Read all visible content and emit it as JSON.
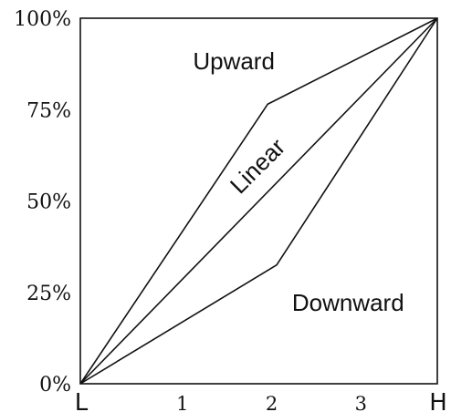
{
  "chart_data": {
    "type": "line",
    "title": "",
    "xlabel": "",
    "ylabel": "",
    "x_ticks": [
      "L",
      "1",
      "2",
      "3",
      "H"
    ],
    "y_ticks": [
      "0%",
      "25%",
      "50%",
      "75%",
      "100%"
    ],
    "xlim": [
      0,
      4
    ],
    "ylim": [
      0,
      100
    ],
    "grid": false,
    "series": [
      {
        "name": "Upward",
        "x": [
          0,
          2.1,
          4
        ],
        "y": [
          0,
          76.5,
          100
        ]
      },
      {
        "name": "Linear",
        "x": [
          0,
          4
        ],
        "y": [
          0,
          100
        ]
      },
      {
        "name": "Downward",
        "x": [
          0,
          2.2,
          4
        ],
        "y": [
          0,
          32.5,
          100
        ]
      }
    ],
    "annotations": [
      {
        "text": "Upward",
        "x": 1.72,
        "y": 86
      },
      {
        "text": "Linear",
        "x": 2.05,
        "y": 58,
        "rotate": -45
      },
      {
        "text": "Downward",
        "x": 3.0,
        "y": 20
      }
    ],
    "colors": {
      "line": "#111111",
      "background": "#ffffff"
    }
  }
}
